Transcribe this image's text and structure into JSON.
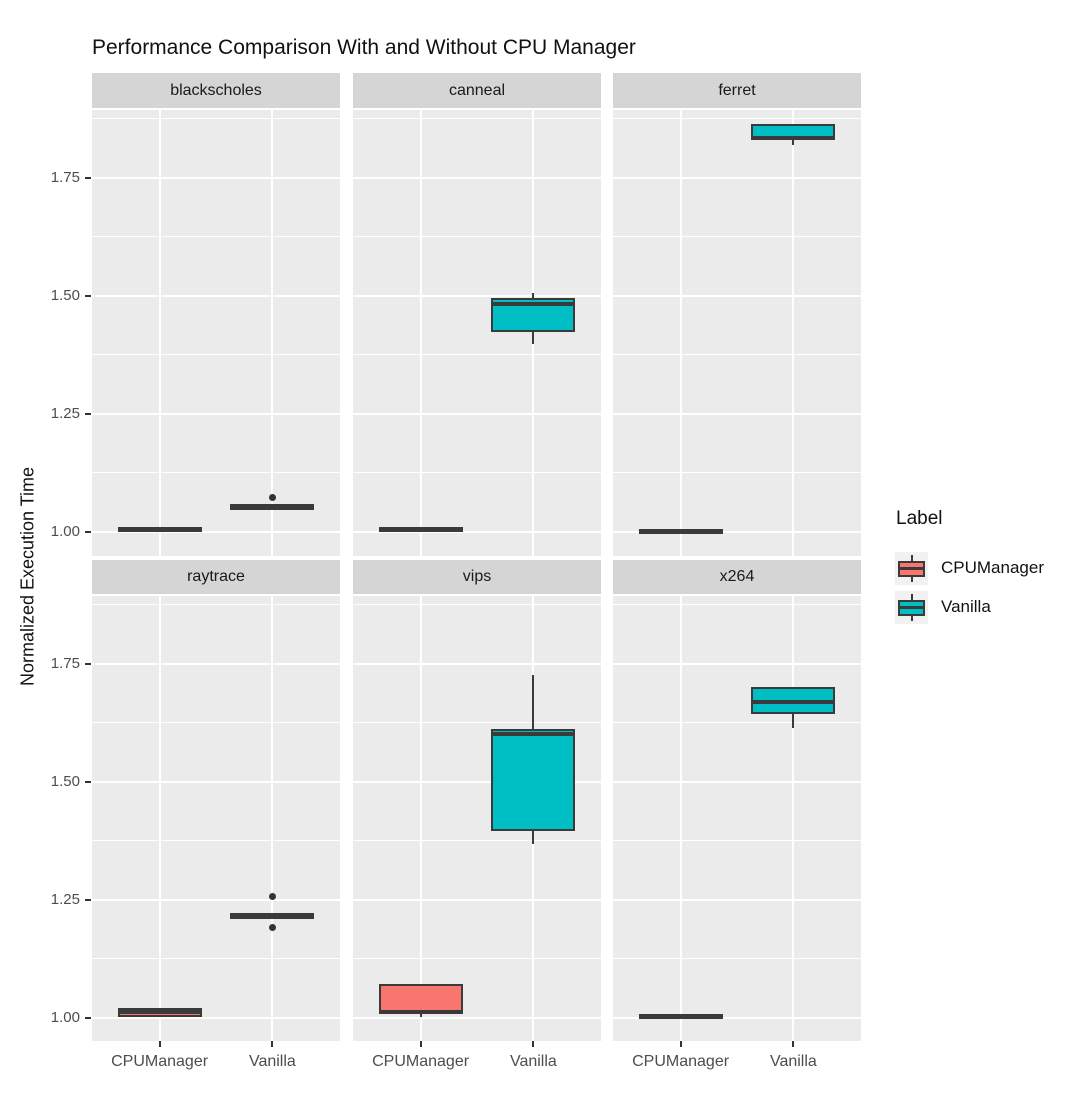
{
  "chart_data": {
    "type": "boxplot",
    "title": "Performance Comparison With and Without CPU Manager",
    "ylabel": "Normalized Execution Time",
    "xlabel": "",
    "categories": [
      "CPUManager",
      "Vanilla"
    ],
    "y_ticks": [
      "1.00",
      "1.25",
      "1.50",
      "1.75"
    ],
    "y_tick_values": [
      1.0,
      1.25,
      1.5,
      1.75
    ],
    "y_minor_values": [
      1.125,
      1.375,
      1.625,
      1.875
    ],
    "y_domain": [
      0.948,
      1.894
    ],
    "grid": true,
    "legend_position": "right",
    "legend": {
      "title": "Label",
      "items": [
        {
          "label": "CPUManager",
          "color": "#F8766D"
        },
        {
          "label": "Vanilla",
          "color": "#00BFC4"
        }
      ]
    },
    "facets": [
      {
        "name": "blackscholes",
        "boxes": [
          {
            "group": "CPUManager",
            "min": 1.0,
            "q1": 1.002,
            "median": 1.006,
            "q3": 1.01,
            "max": 1.012,
            "outliers": []
          },
          {
            "group": "Vanilla",
            "min": 1.05,
            "q1": 1.052,
            "median": 1.055,
            "q3": 1.058,
            "max": 1.06,
            "outliers": [
              1.072
            ]
          }
        ]
      },
      {
        "name": "canneal",
        "boxes": [
          {
            "group": "CPUManager",
            "min": 0.997,
            "q1": 1.0,
            "median": 1.005,
            "q3": 1.01,
            "max": 1.013,
            "outliers": []
          },
          {
            "group": "Vanilla",
            "min": 1.398,
            "q1": 1.423,
            "median": 1.484,
            "q3": 1.495,
            "max": 1.507,
            "outliers": []
          }
        ]
      },
      {
        "name": "ferret",
        "boxes": [
          {
            "group": "CPUManager",
            "min": 0.999,
            "q1": 1.001,
            "median": 1.003,
            "q3": 1.006,
            "max": 1.008,
            "outliers": []
          },
          {
            "group": "Vanilla",
            "min": 1.82,
            "q1": 1.83,
            "median": 1.834,
            "q3": 1.864,
            "max": 1.866,
            "outliers": []
          }
        ]
      },
      {
        "name": "raytrace",
        "boxes": [
          {
            "group": "CPUManager",
            "min": 1.0,
            "q1": 1.002,
            "median": 1.013,
            "q3": 1.022,
            "max": 1.024,
            "outliers": []
          },
          {
            "group": "Vanilla",
            "min": 1.215,
            "q1": 1.216,
            "median": 1.218,
            "q3": 1.22,
            "max": 1.222,
            "outliers": [
              1.257,
              1.192
            ]
          }
        ]
      },
      {
        "name": "vips",
        "boxes": [
          {
            "group": "CPUManager",
            "min": 1.002,
            "q1": 1.008,
            "median": 1.012,
            "q3": 1.072,
            "max": 1.072,
            "outliers": []
          },
          {
            "group": "Vanilla",
            "min": 1.368,
            "q1": 1.397,
            "median": 1.601,
            "q3": 1.612,
            "max": 1.727,
            "outliers": []
          }
        ]
      },
      {
        "name": "x264",
        "boxes": [
          {
            "group": "CPUManager",
            "min": 0.999,
            "q1": 1.001,
            "median": 1.005,
            "q3": 1.009,
            "max": 1.011,
            "outliers": []
          },
          {
            "group": "Vanilla",
            "min": 1.614,
            "q1": 1.644,
            "median": 1.67,
            "q3": 1.701,
            "max": 1.701,
            "outliers": []
          }
        ]
      }
    ],
    "colors": {
      "CPUManager": "#F8766D",
      "Vanilla": "#00BFC4",
      "panel_background": "#EBEBEB",
      "strip_background": "#D5D5D5",
      "gridline": "#FFFFFF",
      "box_stroke": "#3A3A3A",
      "tick_text": "#4D4D4D"
    }
  }
}
